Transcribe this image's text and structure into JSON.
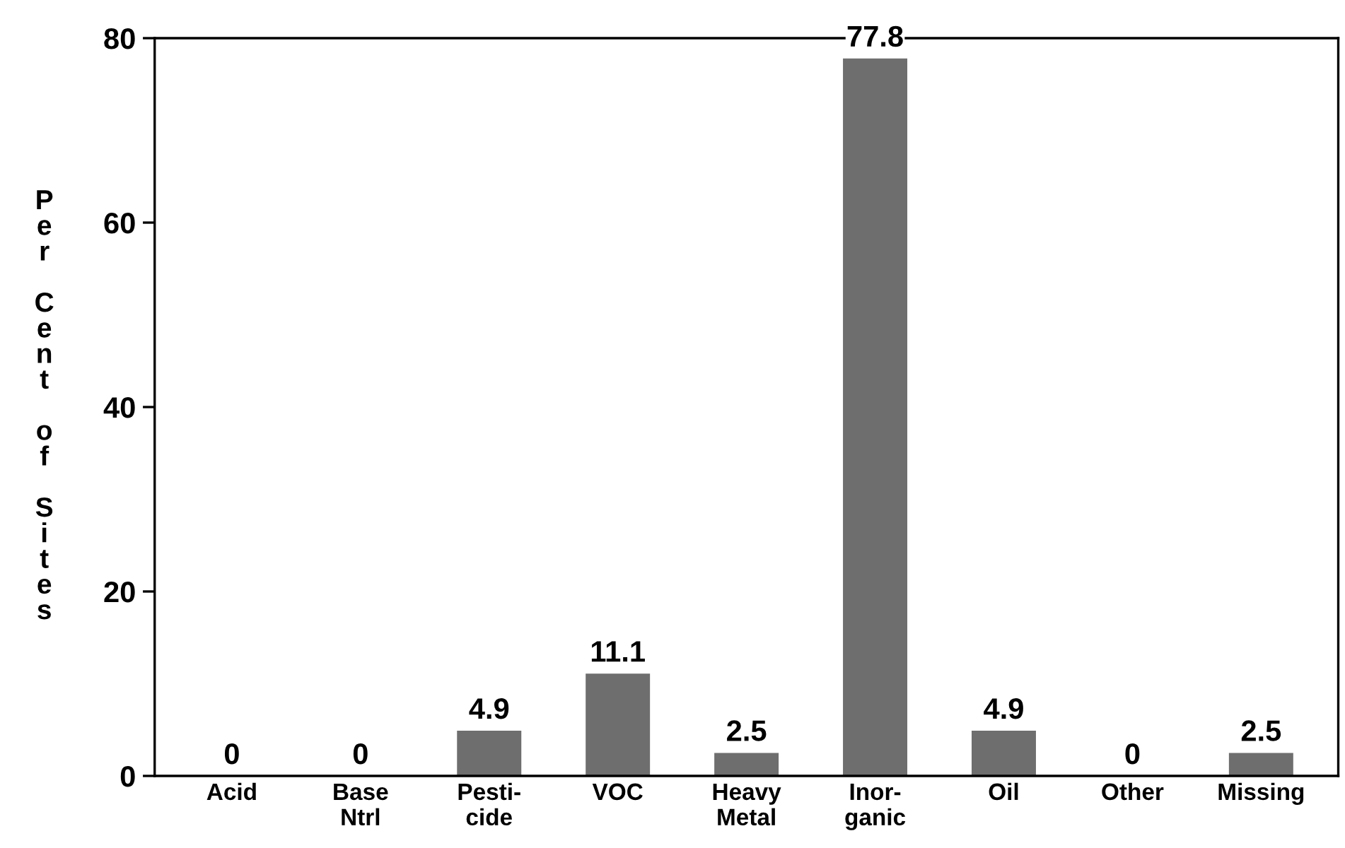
{
  "chart_data": {
    "type": "bar",
    "ylabel": "Per Cent of Sites",
    "categories": [
      "Acid",
      "Base\nNtrl",
      "Pesti-\ncide",
      "VOC",
      "Heavy\nMetal",
      "Inor-\nganic",
      "Oil",
      "Other",
      "Missing"
    ],
    "values": [
      0,
      0,
      4.9,
      11.1,
      2.5,
      77.8,
      4.9,
      0,
      2.5
    ],
    "color": "#6e6e6e",
    "ylim": [
      0,
      80
    ],
    "yticks": [
      0,
      20,
      40,
      60,
      80
    ],
    "grid": false,
    "data_labels": true
  }
}
